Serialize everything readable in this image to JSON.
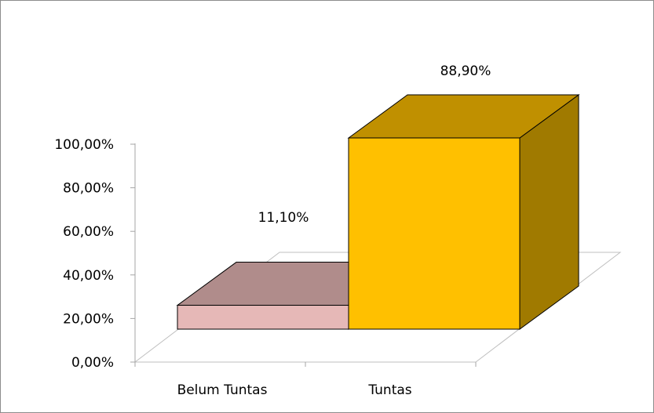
{
  "chart_data": {
    "type": "bar",
    "style": "3d-column",
    "categories": [
      "Belum Tuntas",
      "Tuntas"
    ],
    "values": [
      11.1,
      88.9
    ],
    "value_labels": [
      "11,10%",
      "88,90%"
    ],
    "ylim": [
      0,
      100
    ],
    "y_ticks": [
      "0,00%",
      "20,00%",
      "40,00%",
      "60,00%",
      "80,00%",
      "100,00%"
    ],
    "y_tick_values": [
      0,
      20,
      40,
      60,
      80,
      100
    ],
    "grid": false,
    "legend": "none",
    "colors": {
      "Belum Tuntas": {
        "front": "#e6b8b7",
        "top": "#b08c8b",
        "side": "#8a6b6a"
      },
      "Tuntas": {
        "front": "#ffc000",
        "top": "#c09000",
        "side": "#a07a00"
      }
    }
  }
}
